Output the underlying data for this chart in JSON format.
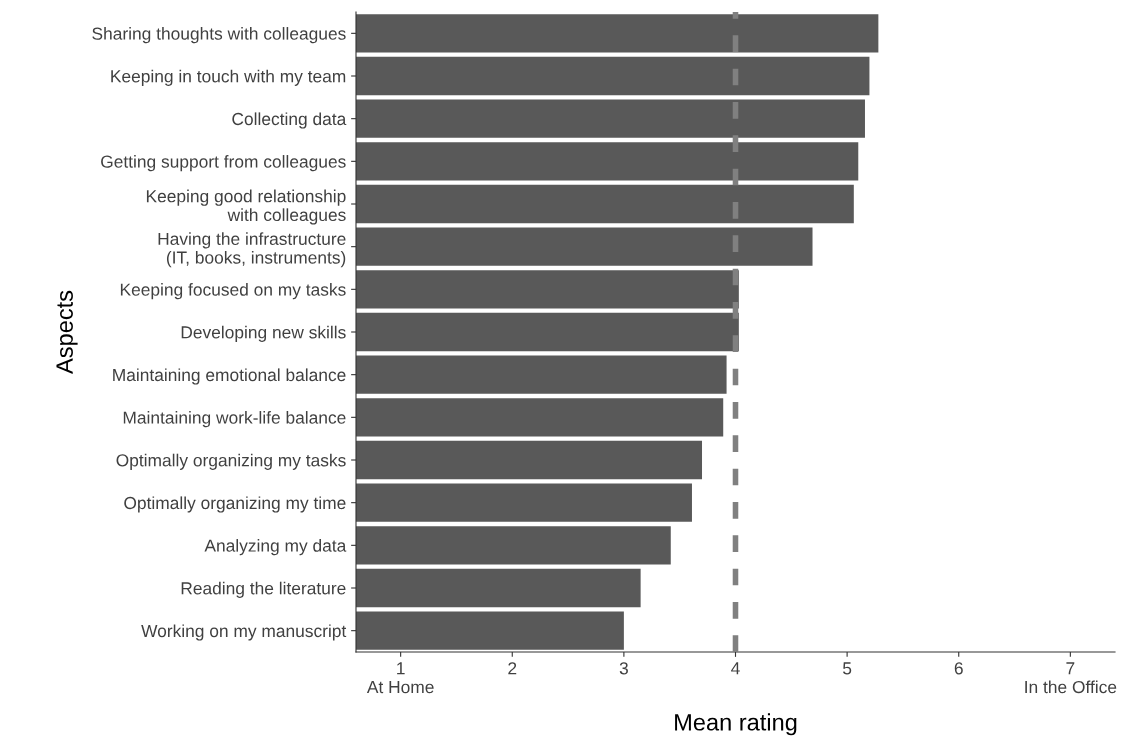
{
  "chart_data": {
    "type": "bar",
    "orientation": "horizontal",
    "xlabel": "Mean rating",
    "ylabel": "Aspects",
    "categories": [
      "Sharing thoughts with colleagues",
      "Keeping in touch with my team",
      "Collecting data",
      "Getting support from colleagues",
      "Keeping good relationship\nwith colleagues",
      "Having the infrastructure\n(IT, books, instruments)",
      "Keeping focused on my tasks",
      "Developing new skills",
      "Maintaining emotional balance",
      "Maintaining work-life balance",
      "Optimally organizing my tasks",
      "Optimally organizing my time",
      "Analyzing my data",
      "Reading the literature",
      "Working on my manuscript"
    ],
    "values": [
      5.28,
      5.2,
      5.16,
      5.1,
      5.06,
      4.69,
      4.03,
      4.03,
      3.92,
      3.89,
      3.7,
      3.61,
      3.42,
      3.15,
      3.0
    ],
    "color": "#595959",
    "xlim": [
      0.6,
      7.4
    ],
    "xticks": [
      {
        "value": 1,
        "label": "1\nAt Home"
      },
      2,
      3,
      4,
      5,
      6,
      {
        "value": 7,
        "label": "7\nIn the Office"
      }
    ],
    "ref_lines": [
      {
        "axis": "x",
        "value": 4,
        "color": "#808080",
        "line_style": "dashed"
      }
    ],
    "grid": false,
    "legend": false
  }
}
